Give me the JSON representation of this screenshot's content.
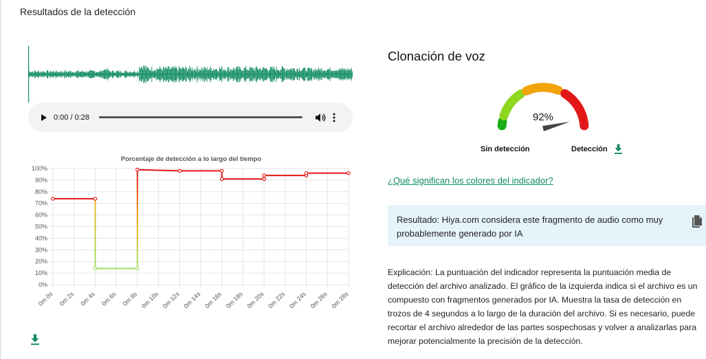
{
  "section_title": "Resultados de la detección",
  "audio": {
    "time": "0:00 / 0:28",
    "progress": 0
  },
  "chart_data": {
    "type": "line",
    "title": "Porcentaje de detección a lo largo del tiempo",
    "xlabel": "",
    "ylabel": "",
    "x_ticks": [
      "0m 0s",
      "0m 2s",
      "0m 4s",
      "0m 6s",
      "0m 8s",
      "0m 10s",
      "0m 12s",
      "0m 14s",
      "0m 16s",
      "0m 18s",
      "0m 20s",
      "0m 22s",
      "0m 24s",
      "0m 26s",
      "0m 28s"
    ],
    "y_ticks": [
      "0%",
      "10%",
      "20%",
      "30%",
      "40%",
      "50%",
      "60%",
      "70%",
      "80%",
      "90%",
      "100%"
    ],
    "xlim": [
      0,
      28
    ],
    "ylim": [
      0,
      100
    ],
    "grid": true,
    "series": [
      {
        "points": [
          [
            0,
            74
          ],
          [
            4,
            74
          ],
          [
            4,
            14
          ],
          [
            8,
            14
          ],
          [
            8,
            99
          ],
          [
            12,
            98
          ],
          [
            16,
            98
          ],
          [
            16,
            91
          ],
          [
            20,
            91
          ],
          [
            20,
            94
          ],
          [
            24,
            94
          ],
          [
            24,
            96
          ],
          [
            28,
            96
          ]
        ]
      }
    ]
  },
  "voice_cloning": {
    "title": "Clonación de voz",
    "score": 92,
    "score_label": "92%",
    "label_left": "Sin detección",
    "label_right": "Detección",
    "colors": {
      "green": "#1aae1a",
      "lime": "#8fd61f",
      "orange": "#f2a40a",
      "red": "#e21818"
    }
  },
  "colors_link": "¿Qué significan los colores del indicador?",
  "result": "Resultado: Hiya.com considera este fragmento de audio como muy probablemente generado por IA",
  "explanation": "Explicación: La puntuación del indicador representa la puntuación media de detección del archivo analizado. El gráfico de la izquierda indica si el archivo es un compuesto con fragmentos generados por IA. Muestra la tasa de detección en trozos de 4 segundos a lo largo de la duración del archivo. Si es necesario, puede recortar el archivo alrededor de las partes sospechosas y volver a analizarlas para mejorar potencialmente la precisión de la detección.",
  "accent": "#0f8a67",
  "icons": {
    "download": "download-icon",
    "copy": "copy-icon",
    "volume": "volume-icon",
    "more": "more-vert-icon",
    "play": "play-icon"
  }
}
